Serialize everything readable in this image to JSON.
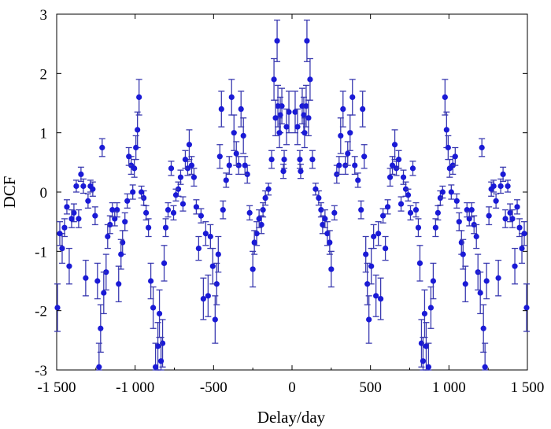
{
  "chart_data": {
    "type": "scatter",
    "title": "",
    "xlabel": "Delay/day",
    "ylabel": "DCF",
    "xlim": [
      -1500,
      1500
    ],
    "ylim": [
      -3,
      3
    ],
    "x_ticks": [
      "-1 500",
      "-1 000",
      "-500",
      "0",
      "500",
      "1 000",
      "1 500"
    ],
    "y_ticks": [
      "-3",
      "-2",
      "-1",
      "0",
      "1",
      "2",
      "3"
    ],
    "grid": false,
    "error_bars": true,
    "marker_color": "#1a1ad6",
    "error_bar_color": "#3a3ab0",
    "points_positive_half": [
      {
        "x": 20,
        "y": 1.35,
        "err": 0.35
      },
      {
        "x": 35,
        "y": 1.1,
        "err": 0.3
      },
      {
        "x": 50,
        "y": 0.55,
        "err": 0.15
      },
      {
        "x": 55,
        "y": 0.35,
        "err": 0.12
      },
      {
        "x": 65,
        "y": 1.45,
        "err": 0.3
      },
      {
        "x": 75,
        "y": 1.3,
        "err": 0.3
      },
      {
        "x": 80,
        "y": 1.0,
        "err": 0.25
      },
      {
        "x": 90,
        "y": 1.45,
        "err": 0.35
      },
      {
        "x": 95,
        "y": 2.55,
        "err": 0.35
      },
      {
        "x": 105,
        "y": 1.25,
        "err": 0.3
      },
      {
        "x": 115,
        "y": 1.9,
        "err": 0.35
      },
      {
        "x": 130,
        "y": 0.55,
        "err": 0.15
      },
      {
        "x": 150,
        "y": 0.05,
        "err": 0.1
      },
      {
        "x": 170,
        "y": -0.1,
        "err": 0.12
      },
      {
        "x": 185,
        "y": -0.3,
        "err": 0.12
      },
      {
        "x": 195,
        "y": -0.55,
        "err": 0.15
      },
      {
        "x": 210,
        "y": -0.45,
        "err": 0.15
      },
      {
        "x": 225,
        "y": -0.7,
        "err": 0.2
      },
      {
        "x": 240,
        "y": -0.85,
        "err": 0.2
      },
      {
        "x": 250,
        "y": -1.3,
        "err": 0.3
      },
      {
        "x": 270,
        "y": -0.35,
        "err": 0.12
      },
      {
        "x": 285,
        "y": 0.3,
        "err": 0.15
      },
      {
        "x": 300,
        "y": 0.45,
        "err": 0.15
      },
      {
        "x": 310,
        "y": 0.95,
        "err": 0.3
      },
      {
        "x": 325,
        "y": 1.4,
        "err": 0.3
      },
      {
        "x": 340,
        "y": 0.45,
        "err": 0.15
      },
      {
        "x": 355,
        "y": 0.65,
        "err": 0.2
      },
      {
        "x": 370,
        "y": 1.0,
        "err": 0.3
      },
      {
        "x": 385,
        "y": 1.6,
        "err": 0.3
      },
      {
        "x": 400,
        "y": 0.45,
        "err": 0.15
      },
      {
        "x": 420,
        "y": 0.2,
        "err": 0.12
      },
      {
        "x": 440,
        "y": -0.3,
        "err": 0.15
      },
      {
        "x": 450,
        "y": 1.4,
        "err": 0.3
      },
      {
        "x": 460,
        "y": 0.6,
        "err": 0.2
      },
      {
        "x": 470,
        "y": -1.05,
        "err": 0.3
      },
      {
        "x": 480,
        "y": -1.55,
        "err": 0.35
      },
      {
        "x": 490,
        "y": -2.15,
        "err": 0.4
      },
      {
        "x": 505,
        "y": -1.25,
        "err": 0.3
      },
      {
        "x": 520,
        "y": -0.75,
        "err": 0.2
      },
      {
        "x": 535,
        "y": -1.75,
        "err": 0.35
      },
      {
        "x": 550,
        "y": -0.7,
        "err": 0.2
      },
      {
        "x": 565,
        "y": -1.8,
        "err": 0.35
      },
      {
        "x": 580,
        "y": -0.4,
        "err": 0.12
      },
      {
        "x": 595,
        "y": -0.95,
        "err": 0.2
      },
      {
        "x": 610,
        "y": -0.25,
        "err": 0.12
      },
      {
        "x": 625,
        "y": 0.25,
        "err": 0.15
      },
      {
        "x": 640,
        "y": 0.45,
        "err": 0.15
      },
      {
        "x": 655,
        "y": 0.8,
        "err": 0.25
      },
      {
        "x": 665,
        "y": 0.4,
        "err": 0.12
      },
      {
        "x": 680,
        "y": 0.55,
        "err": 0.15
      },
      {
        "x": 695,
        "y": -0.2,
        "err": 0.12
      },
      {
        "x": 710,
        "y": 0.25,
        "err": 0.12
      },
      {
        "x": 725,
        "y": 0.05,
        "err": 0.12
      },
      {
        "x": 740,
        "y": -0.05,
        "err": 0.1
      },
      {
        "x": 755,
        "y": -0.35,
        "err": 0.12
      },
      {
        "x": 770,
        "y": 0.4,
        "err": 0.12
      },
      {
        "x": 790,
        "y": -0.3,
        "err": 0.12
      },
      {
        "x": 805,
        "y": -0.6,
        "err": 0.15
      },
      {
        "x": 815,
        "y": -1.2,
        "err": 0.3
      },
      {
        "x": 825,
        "y": -2.55,
        "err": 0.4
      },
      {
        "x": 835,
        "y": -2.85,
        "err": 0.4
      },
      {
        "x": 845,
        "y": -2.05,
        "err": 0.4
      },
      {
        "x": 855,
        "y": -2.6,
        "err": 0.4
      },
      {
        "x": 870,
        "y": -2.95,
        "err": 0.4
      },
      {
        "x": 885,
        "y": -1.95,
        "err": 0.35
      },
      {
        "x": 900,
        "y": -1.5,
        "err": 0.3
      },
      {
        "x": 915,
        "y": -0.6,
        "err": 0.15
      },
      {
        "x": 930,
        "y": -0.35,
        "err": 0.12
      },
      {
        "x": 945,
        "y": -0.1,
        "err": 0.12
      },
      {
        "x": 960,
        "y": 0.0,
        "err": 0.1
      },
      {
        "x": 975,
        "y": 1.6,
        "err": 0.3
      },
      {
        "x": 985,
        "y": 1.05,
        "err": 0.3
      },
      {
        "x": 995,
        "y": 0.75,
        "err": 0.2
      },
      {
        "x": 1005,
        "y": 0.4,
        "err": 0.15
      },
      {
        "x": 1015,
        "y": 0.0,
        "err": 0.12
      },
      {
        "x": 1025,
        "y": 0.45,
        "err": 0.15
      },
      {
        "x": 1040,
        "y": 0.6,
        "err": 0.15
      },
      {
        "x": 1050,
        "y": -0.15,
        "err": 0.12
      },
      {
        "x": 1065,
        "y": -0.5,
        "err": 0.15
      },
      {
        "x": 1080,
        "y": -0.85,
        "err": 0.2
      },
      {
        "x": 1090,
        "y": -1.05,
        "err": 0.25
      },
      {
        "x": 1105,
        "y": -1.55,
        "err": 0.3
      },
      {
        "x": 1115,
        "y": -0.3,
        "err": 0.12
      },
      {
        "x": 1130,
        "y": -0.45,
        "err": 0.12
      },
      {
        "x": 1145,
        "y": -0.3,
        "err": 0.12
      },
      {
        "x": 1160,
        "y": -0.55,
        "err": 0.15
      },
      {
        "x": 1175,
        "y": -0.75,
        "err": 0.2
      },
      {
        "x": 1185,
        "y": -1.35,
        "err": 0.3
      },
      {
        "x": 1200,
        "y": -1.7,
        "err": 0.35
      },
      {
        "x": 1210,
        "y": 0.75,
        "err": 0.15
      },
      {
        "x": 1220,
        "y": -2.3,
        "err": 0.4
      },
      {
        "x": 1230,
        "y": -2.95,
        "err": 0.4
      },
      {
        "x": 1240,
        "y": -1.5,
        "err": 0.3
      },
      {
        "x": 1255,
        "y": -0.4,
        "err": 0.15
      },
      {
        "x": 1270,
        "y": 0.05,
        "err": 0.12
      },
      {
        "x": 1285,
        "y": 0.1,
        "err": 0.1
      },
      {
        "x": 1300,
        "y": -0.15,
        "err": 0.12
      },
      {
        "x": 1315,
        "y": -1.45,
        "err": 0.3
      },
      {
        "x": 1330,
        "y": 0.1,
        "err": 0.12
      },
      {
        "x": 1345,
        "y": 0.3,
        "err": 0.12
      },
      {
        "x": 1360,
        "y": -0.45,
        "err": 0.15
      },
      {
        "x": 1375,
        "y": 0.1,
        "err": 0.1
      },
      {
        "x": 1390,
        "y": -0.35,
        "err": 0.15
      },
      {
        "x": 1405,
        "y": -0.45,
        "err": 0.15
      },
      {
        "x": 1420,
        "y": -1.25,
        "err": 0.3
      },
      {
        "x": 1435,
        "y": -0.25,
        "err": 0.12
      },
      {
        "x": 1450,
        "y": -0.6,
        "err": 0.15
      },
      {
        "x": 1465,
        "y": -0.95,
        "err": 0.25
      },
      {
        "x": 1480,
        "y": -0.7,
        "err": 0.2
      },
      {
        "x": 1495,
        "y": -1.95,
        "err": 0.4
      }
    ],
    "symmetry": "mirror about x = 0"
  }
}
